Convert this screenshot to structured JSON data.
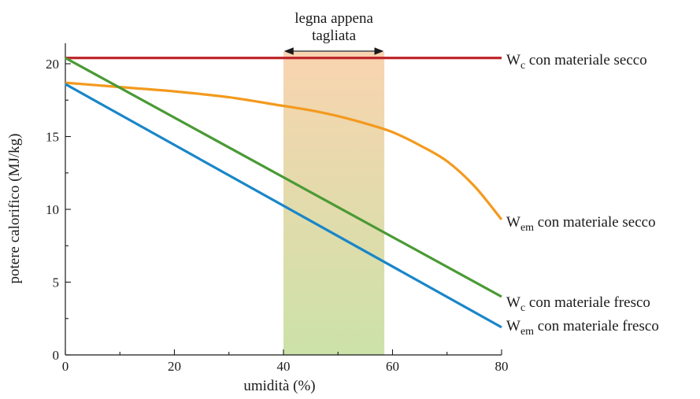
{
  "chart_data": {
    "type": "line",
    "xlabel": "umidità (%)",
    "ylabel": "potere calorifico (MJ/kg)",
    "xlim": [
      0,
      80
    ],
    "ylim": [
      0,
      20
    ],
    "x_ticks": [
      0,
      20,
      40,
      60,
      80
    ],
    "y_ticks": [
      0,
      5,
      10,
      15,
      20
    ],
    "grid": false,
    "highlight_band": {
      "x_range": [
        40,
        58.5
      ],
      "label": "legna appena tagliata",
      "color_top": "#f9d4b0",
      "color_bottom": "#cce2a8"
    },
    "series": [
      {
        "name": "W_c con materiale secco",
        "label_main": "W",
        "label_sub": "c",
        "label_rest": " con materiale secco",
        "color": "#c0282d",
        "x": [
          0,
          80
        ],
        "y": [
          20.4,
          20.4
        ]
      },
      {
        "name": "W_em con materiale secco",
        "label_main": "W",
        "label_sub": "em",
        "label_rest": " con materiale secco",
        "color": "#f39a1e",
        "x": [
          0,
          10,
          20,
          30,
          40,
          45,
          50,
          55,
          60,
          65,
          70,
          75,
          80
        ],
        "y": [
          18.7,
          18.4,
          18.1,
          17.7,
          17.1,
          16.8,
          16.4,
          15.9,
          15.3,
          14.4,
          13.3,
          11.6,
          9.3
        ]
      },
      {
        "name": "W_c con materiale fresco",
        "label_main": "W",
        "label_sub": "c",
        "label_rest": " con materiale fresco",
        "color": "#4a9a35",
        "x": [
          0,
          80
        ],
        "y": [
          20.4,
          4.0
        ]
      },
      {
        "name": "W_em con materiale fresco",
        "label_main": "W",
        "label_sub": "em",
        "label_rest": " con materiale fresco",
        "color": "#1a86c8",
        "x": [
          0,
          80
        ],
        "y": [
          18.6,
          1.9
        ]
      }
    ]
  }
}
